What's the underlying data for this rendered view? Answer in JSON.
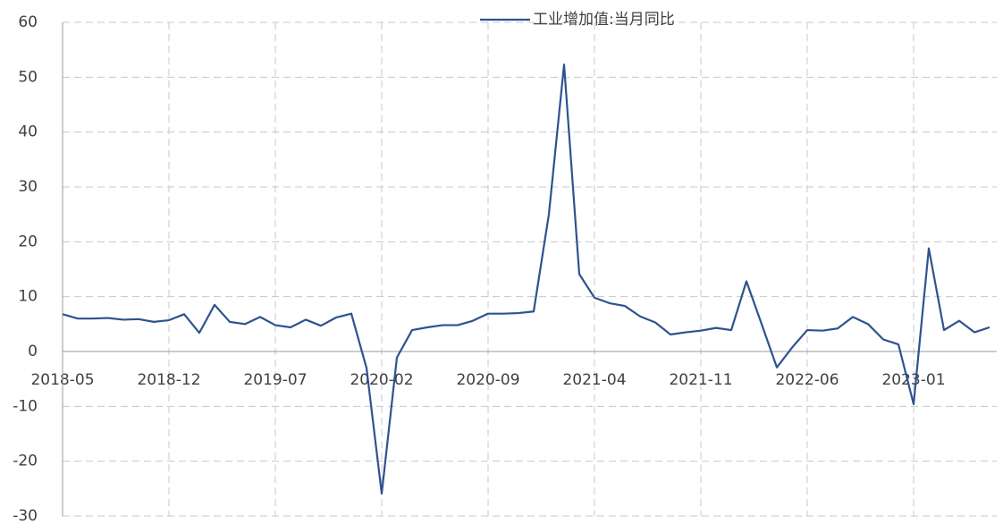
{
  "chart_data": {
    "type": "line",
    "categories": [
      "2018-05",
      null,
      null,
      null,
      null,
      null,
      null,
      "2018-12",
      null,
      null,
      null,
      null,
      null,
      null,
      "2019-07",
      null,
      null,
      null,
      null,
      null,
      null,
      "2020-02",
      null,
      null,
      null,
      null,
      null,
      null,
      "2020-09",
      null,
      null,
      null,
      null,
      null,
      null,
      "2021-04",
      null,
      null,
      null,
      null,
      null,
      null,
      "2021-11",
      null,
      null,
      null,
      null,
      null,
      null,
      "2022-06",
      null,
      null,
      null,
      null,
      null,
      null,
      "2023-01",
      null,
      null,
      null,
      null,
      null
    ],
    "series": [
      {
        "name": "工业增加值:当月同比",
        "color": "#2f528f",
        "values": [
          6.8,
          6.0,
          6.0,
          6.1,
          5.8,
          5.9,
          5.4,
          5.7,
          6.8,
          3.4,
          8.5,
          5.4,
          5.0,
          6.3,
          4.8,
          4.4,
          5.8,
          4.7,
          6.2,
          6.9,
          -3.0,
          -25.9,
          -1.1,
          3.9,
          4.4,
          4.8,
          4.8,
          5.6,
          6.9,
          6.9,
          7.0,
          7.3,
          25.0,
          52.3,
          14.1,
          9.8,
          8.8,
          8.3,
          6.4,
          5.3,
          3.1,
          3.5,
          3.8,
          4.3,
          3.9,
          12.8,
          5.0,
          -2.9,
          0.7,
          3.9,
          3.8,
          4.2,
          6.3,
          5.0,
          2.2,
          1.3,
          -9.6,
          18.8,
          3.9,
          5.6,
          3.5,
          4.4
        ]
      }
    ],
    "ylim": [
      -30,
      60
    ],
    "yticks": [
      -30,
      -20,
      -10,
      0,
      10,
      20,
      30,
      40,
      50,
      60
    ],
    "grid": true,
    "legend": "top"
  }
}
